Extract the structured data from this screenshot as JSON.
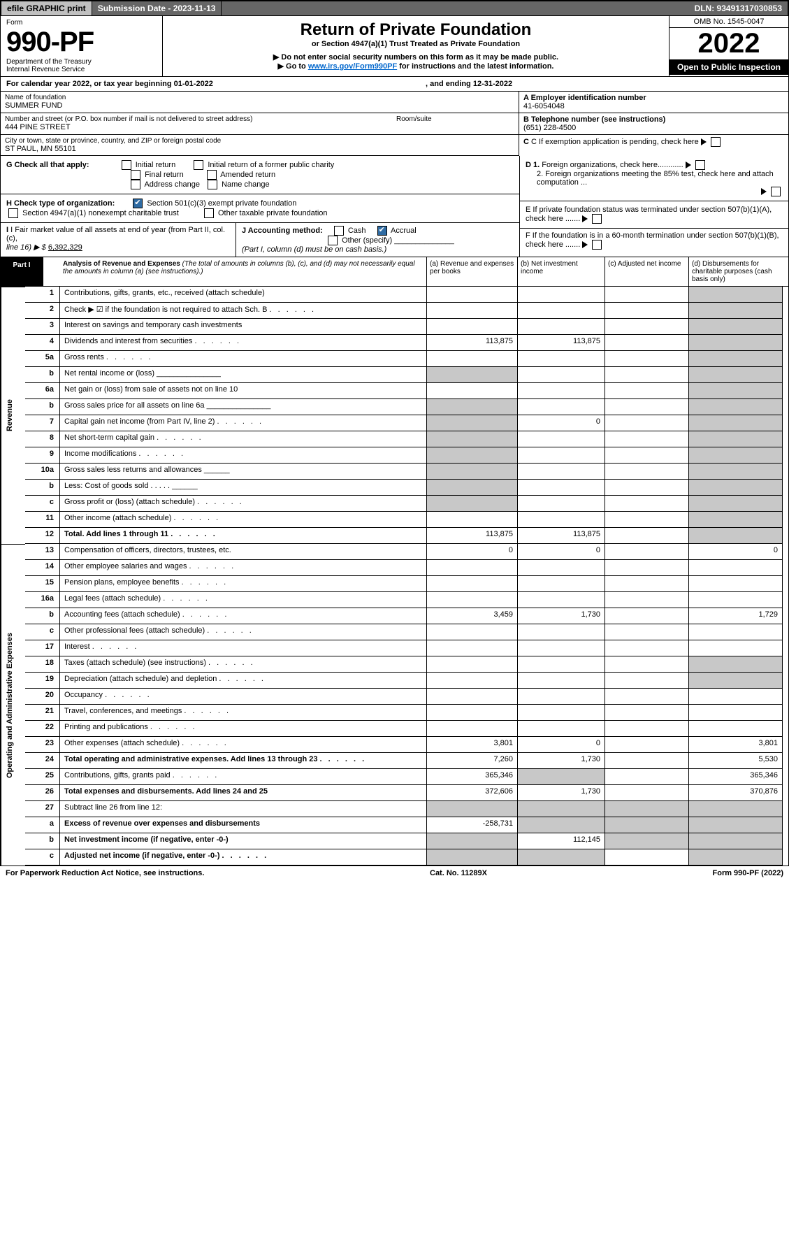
{
  "topbar": {
    "efile": "efile GRAPHIC print",
    "sub": "Submission Date - 2023-11-13",
    "dln": "DLN: 93491317030853"
  },
  "header": {
    "form": "Form",
    "formno": "990-PF",
    "dept": "Department of the Treasury",
    "irs": "Internal Revenue Service",
    "title": "Return of Private Foundation",
    "subtitle": "or Section 4947(a)(1) Trust Treated as Private Foundation",
    "bullet1": "▶ Do not enter social security numbers on this form as it may be made public.",
    "bullet2a": "▶ Go to ",
    "bullet2link": "www.irs.gov/Form990PF",
    "bullet2b": " for instructions and the latest information.",
    "omb": "OMB No. 1545-0047",
    "year": "2022",
    "open": "Open to Public Inspection"
  },
  "cal": {
    "a": "For calendar year 2022, or tax year beginning 01-01-2022",
    "b": ", and ending 12-31-2022"
  },
  "addr": {
    "nameLbl": "Name of foundation",
    "name": "SUMMER FUND",
    "streetLbl": "Number and street (or P.O. box number if mail is not delivered to street address)",
    "room": "Room/suite",
    "street": "444 PINE STREET",
    "cityLbl": "City or town, state or province, country, and ZIP or foreign postal code",
    "city": "ST PAUL, MN  55101",
    "einLbl": "A Employer identification number",
    "ein": "41-6054048",
    "telLbl": "B Telephone number (see instructions)",
    "tel": "(651) 228-4500",
    "cLbl": "C If exemption application is pending, check here"
  },
  "G": {
    "label": "G Check all that apply:",
    "o": [
      "Initial return",
      "Initial return of a former public charity",
      "Final return",
      "Amended return",
      "Address change",
      "Name change"
    ]
  },
  "H": {
    "label": "H Check type of organization:",
    "o1": "Section 501(c)(3) exempt private foundation",
    "o2": "Section 4947(a)(1) nonexempt charitable trust",
    "o3": "Other taxable private foundation"
  },
  "D": {
    "d1": "D 1. Foreign organizations, check here............",
    "d2": "2. Foreign organizations meeting the 85% test, check here and attach computation ..."
  },
  "E": "E  If private foundation status was terminated under section 507(b)(1)(A), check here .......",
  "F": "F  If the foundation is in a 60-month termination under section 507(b)(1)(B), check here .......",
  "I": {
    "a": "I Fair market value of all assets at end of year (from Part II, col. (c),",
    "b": "line 16) ▶ $",
    "val": "6,392,329"
  },
  "J": {
    "label": "J Accounting method:",
    "cash": "Cash",
    "accrual": "Accrual",
    "other": "Other (specify)",
    "note": "(Part I, column (d) must be on cash basis.)"
  },
  "partI": {
    "tab": "Part I",
    "title": "Analysis of Revenue and Expenses ",
    "note": "(The total of amounts in columns (b), (c), and (d) may not necessarily equal the amounts in column (a) (see instructions).)",
    "cols": {
      "a": "(a)   Revenue and expenses per books",
      "b": "(b)   Net investment income",
      "c": "(c)   Adjusted net income",
      "d": "(d)  Disbursements for charitable purposes (cash basis only)"
    }
  },
  "vlabels": {
    "rev": "Revenue",
    "exp": "Operating and Administrative Expenses"
  },
  "rows": [
    {
      "n": "1",
      "t": "Contributions, gifts, grants, etc., received (attach schedule)",
      "a": "",
      "b": "",
      "c": "",
      "d": "",
      "dshade": true
    },
    {
      "n": "2",
      "t": "Check ▶ ☑ if the foundation is not required to attach Sch. B",
      "dots": true,
      "dshade": true,
      "nobc": true
    },
    {
      "n": "3",
      "t": "Interest on savings and temporary cash investments",
      "a": "",
      "b": "",
      "c": "",
      "d": "",
      "dshade": true
    },
    {
      "n": "4",
      "t": "Dividends and interest from securities",
      "dots": true,
      "a": "113,875",
      "b": "113,875",
      "c": "",
      "d": "",
      "dshade": true
    },
    {
      "n": "5a",
      "t": "Gross rents",
      "dots": true,
      "dshade": true
    },
    {
      "n": "b",
      "t": "Net rental income or (loss)   _______________",
      "dshade": true,
      "nobc": true,
      "ashade": true
    },
    {
      "n": "6a",
      "t": "Net gain or (loss) from sale of assets not on line 10",
      "dshade": true
    },
    {
      "n": "b",
      "t": "Gross sales price for all assets on line 6a _______________",
      "ashade": true,
      "dshade": true,
      "nobc": true
    },
    {
      "n": "7",
      "t": "Capital gain net income (from Part IV, line 2)",
      "dots": true,
      "b": "0",
      "dshade": true,
      "ashade": true
    },
    {
      "n": "8",
      "t": "Net short-term capital gain",
      "dots": true,
      "dshade": true,
      "ashade": true
    },
    {
      "n": "9",
      "t": "Income modifications",
      "dots": true,
      "dshade": true,
      "ashade": true
    },
    {
      "n": "10a",
      "t": "Gross sales less returns and allowances   ______",
      "nobc": true,
      "ashade": true,
      "dshade": true
    },
    {
      "n": "b",
      "t": "Less: Cost of goods sold      . . . . .   ______",
      "ashade": true,
      "dshade": true,
      "nobc": true
    },
    {
      "n": "c",
      "t": "Gross profit or (loss) (attach schedule)",
      "dots": true,
      "dshade": true,
      "ashade": true
    },
    {
      "n": "11",
      "t": "Other income (attach schedule)",
      "dots": true,
      "dshade": true
    },
    {
      "n": "12",
      "t": "Total. Add lines 1 through 11",
      "dots": true,
      "bold": true,
      "a": "113,875",
      "b": "113,875",
      "dshade": true
    },
    {
      "n": "13",
      "t": "Compensation of officers, directors, trustees, etc.",
      "a": "0",
      "b": "0",
      "d": "0"
    },
    {
      "n": "14",
      "t": "Other employee salaries and wages",
      "dots": true
    },
    {
      "n": "15",
      "t": "Pension plans, employee benefits",
      "dots": true
    },
    {
      "n": "16a",
      "t": "Legal fees (attach schedule)",
      "dots": true
    },
    {
      "n": "b",
      "t": "Accounting fees (attach schedule)",
      "dots": true,
      "a": "3,459",
      "b": "1,730",
      "d": "1,729"
    },
    {
      "n": "c",
      "t": "Other professional fees (attach schedule)",
      "dots": true
    },
    {
      "n": "17",
      "t": "Interest",
      "dots": true
    },
    {
      "n": "18",
      "t": "Taxes (attach schedule) (see instructions)",
      "dots": true,
      "dshade": true
    },
    {
      "n": "19",
      "t": "Depreciation (attach schedule) and depletion",
      "dots": true,
      "dshade": true
    },
    {
      "n": "20",
      "t": "Occupancy",
      "dots": true
    },
    {
      "n": "21",
      "t": "Travel, conferences, and meetings",
      "dots": true
    },
    {
      "n": "22",
      "t": "Printing and publications",
      "dots": true
    },
    {
      "n": "23",
      "t": "Other expenses (attach schedule)",
      "dots": true,
      "a": "3,801",
      "b": "0",
      "d": "3,801"
    },
    {
      "n": "24",
      "t": "Total operating and administrative expenses. Add lines 13 through 23",
      "dots": true,
      "bold": true,
      "a": "7,260",
      "b": "1,730",
      "d": "5,530"
    },
    {
      "n": "25",
      "t": "Contributions, gifts, grants paid",
      "dots": true,
      "a": "365,346",
      "bshade": true,
      "d": "365,346"
    },
    {
      "n": "26",
      "t": "Total expenses and disbursements. Add lines 24 and 25",
      "bold": true,
      "a": "372,606",
      "b": "1,730",
      "d": "370,876"
    },
    {
      "n": "27",
      "t": "Subtract line 26 from line 12:",
      "ashade": true,
      "bshade": true,
      "cshade": true,
      "dshade": true
    },
    {
      "n": "a",
      "t": "Excess of revenue over expenses and disbursements",
      "bold": true,
      "a": "-258,731",
      "bshade": true,
      "cshade": true,
      "dshade": true
    },
    {
      "n": "b",
      "t": "Net investment income (if negative, enter -0-)",
      "bold": true,
      "ashade": true,
      "b": "112,145",
      "cshade": true,
      "dshade": true
    },
    {
      "n": "c",
      "t": "Adjusted net income (if negative, enter -0-)",
      "dots": true,
      "bold": true,
      "ashade": true,
      "bshade": true,
      "dshade": true
    }
  ],
  "footer": {
    "a": "For Paperwork Reduction Act Notice, see instructions.",
    "b": "Cat. No. 11289X",
    "c": "Form 990-PF (2022)"
  }
}
